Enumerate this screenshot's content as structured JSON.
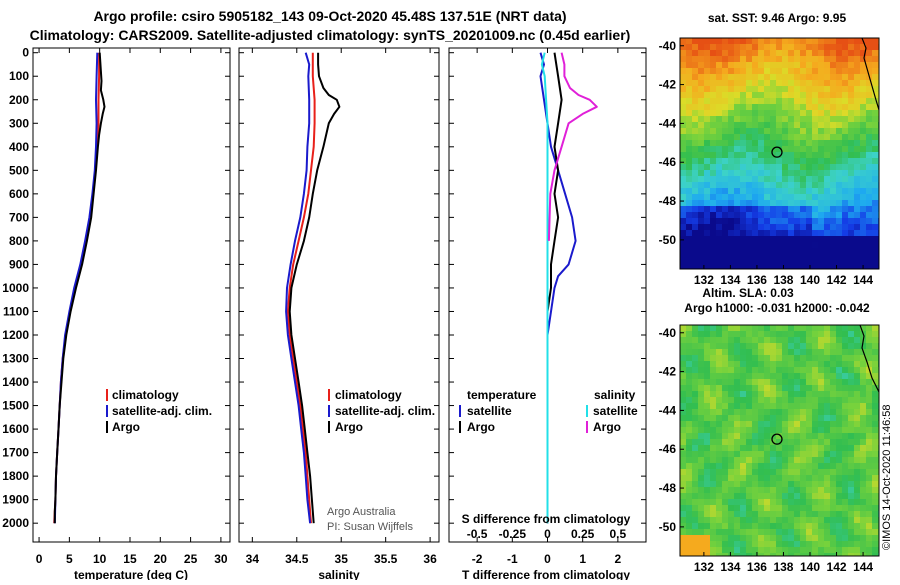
{
  "header": {
    "line1": "Argo profile: csiro 5905182_143 09-Oct-2020 45.48S 137.51E (NRT data)",
    "line2": "Climatology: CARS2009. Satellite-adjusted climatology: synTS_20201009.nc (0.45d earlier)"
  },
  "colors": {
    "argo": "#000000",
    "climatology": "#e8201a",
    "satellite": "#1a1acc",
    "s_satellite": "#22e0e8",
    "s_argo": "#e020d8"
  },
  "chart_data": [
    {
      "type": "line",
      "id": "temperature",
      "xlabel": "temperature (deg C)",
      "ylabel": "",
      "xlim": [
        -1,
        31.5
      ],
      "ylim": [
        2080,
        -20
      ],
      "xticks": [
        0,
        5,
        10,
        15,
        20,
        25,
        30
      ],
      "yticks": [
        0,
        100,
        200,
        300,
        400,
        500,
        600,
        700,
        800,
        900,
        1000,
        1100,
        1200,
        1300,
        1400,
        1500,
        1600,
        1700,
        1800,
        1900,
        2000
      ],
      "legend": {
        "position": "center-right",
        "entries": [
          "climatology",
          "satellite-adj. clim.",
          "Argo"
        ]
      },
      "series": [
        {
          "name": "climatology",
          "color_key": "climatology",
          "points": [
            [
              9.9,
              0
            ],
            [
              9.9,
              100
            ],
            [
              9.8,
              200
            ],
            [
              9.8,
              300
            ],
            [
              9.6,
              400
            ],
            [
              9.3,
              500
            ],
            [
              8.9,
              600
            ],
            [
              8.5,
              700
            ],
            [
              7.8,
              800
            ],
            [
              7.0,
              900
            ],
            [
              6.0,
              1000
            ],
            [
              5.1,
              1100
            ],
            [
              4.4,
              1200
            ],
            [
              3.9,
              1300
            ],
            [
              3.6,
              1400
            ],
            [
              3.4,
              1500
            ],
            [
              3.2,
              1600
            ],
            [
              3.0,
              1700
            ],
            [
              2.8,
              1800
            ],
            [
              2.7,
              1900
            ],
            [
              2.5,
              2000
            ]
          ]
        },
        {
          "name": "satellite-adj. clim.",
          "color_key": "satellite",
          "points": [
            [
              9.6,
              0
            ],
            [
              9.5,
              100
            ],
            [
              9.4,
              200
            ],
            [
              9.5,
              300
            ],
            [
              9.4,
              400
            ],
            [
              9.2,
              500
            ],
            [
              8.8,
              600
            ],
            [
              8.3,
              700
            ],
            [
              7.6,
              800
            ],
            [
              6.8,
              900
            ],
            [
              5.8,
              1000
            ],
            [
              5.0,
              1100
            ],
            [
              4.3,
              1200
            ],
            [
              3.9,
              1300
            ],
            [
              3.6,
              1400
            ],
            [
              3.4,
              1500
            ],
            [
              3.2,
              1600
            ],
            [
              3.0,
              1700
            ],
            [
              2.8,
              1800
            ],
            [
              2.7,
              1900
            ],
            [
              2.6,
              2000
            ]
          ]
        },
        {
          "name": "Argo",
          "color_key": "argo",
          "points": [
            [
              10.0,
              0
            ],
            [
              10.1,
              40
            ],
            [
              10.2,
              80
            ],
            [
              10.3,
              120
            ],
            [
              10.2,
              160
            ],
            [
              10.6,
              200
            ],
            [
              10.8,
              230
            ],
            [
              10.5,
              260
            ],
            [
              10.2,
              300
            ],
            [
              9.9,
              350
            ],
            [
              9.7,
              400
            ],
            [
              9.4,
              500
            ],
            [
              9.0,
              600
            ],
            [
              8.6,
              700
            ],
            [
              7.9,
              800
            ],
            [
              7.1,
              900
            ],
            [
              6.1,
              1000
            ],
            [
              5.2,
              1100
            ],
            [
              4.5,
              1200
            ],
            [
              4.0,
              1300
            ],
            [
              3.7,
              1400
            ],
            [
              3.4,
              1500
            ],
            [
              3.2,
              1600
            ],
            [
              3.0,
              1700
            ],
            [
              2.8,
              1800
            ],
            [
              2.7,
              1900
            ],
            [
              2.6,
              1950
            ],
            [
              2.6,
              2000
            ]
          ]
        }
      ]
    },
    {
      "type": "line",
      "id": "salinity",
      "xlabel": "salinity",
      "ylabel": "",
      "xlim": [
        33.85,
        36.1
      ],
      "ylim": [
        2080,
        -20
      ],
      "xticks": [
        34,
        34.5,
        35,
        35.5,
        36
      ],
      "xtick_labels": [
        "34",
        "34.5",
        "35",
        "35.5",
        "36"
      ],
      "legend": {
        "position": "center-right",
        "entries": [
          "climatology",
          "satellite-adj. clim.",
          "Argo"
        ]
      },
      "credit": [
        "Argo Australia",
        "PI: Susan Wijffels"
      ],
      "series": [
        {
          "name": "climatology",
          "color_key": "climatology",
          "points": [
            [
              34.68,
              0
            ],
            [
              34.68,
              100
            ],
            [
              34.7,
              200
            ],
            [
              34.7,
              300
            ],
            [
              34.69,
              400
            ],
            [
              34.66,
              500
            ],
            [
              34.63,
              600
            ],
            [
              34.58,
              700
            ],
            [
              34.52,
              800
            ],
            [
              34.46,
              900
            ],
            [
              34.42,
              1000
            ],
            [
              34.4,
              1100
            ],
            [
              34.42,
              1200
            ],
            [
              34.46,
              1300
            ],
            [
              34.5,
              1400
            ],
            [
              34.54,
              1500
            ],
            [
              34.57,
              1600
            ],
            [
              34.6,
              1700
            ],
            [
              34.62,
              1800
            ],
            [
              34.64,
              1900
            ],
            [
              34.66,
              2000
            ]
          ]
        },
        {
          "name": "satellite-adj. clim.",
          "color_key": "satellite",
          "points": [
            [
              34.6,
              0
            ],
            [
              34.64,
              50
            ],
            [
              34.63,
              100
            ],
            [
              34.64,
              200
            ],
            [
              34.64,
              300
            ],
            [
              34.62,
              400
            ],
            [
              34.61,
              500
            ],
            [
              34.58,
              600
            ],
            [
              34.54,
              700
            ],
            [
              34.48,
              800
            ],
            [
              34.43,
              900
            ],
            [
              34.39,
              1000
            ],
            [
              34.38,
              1100
            ],
            [
              34.4,
              1200
            ],
            [
              34.44,
              1300
            ],
            [
              34.48,
              1400
            ],
            [
              34.52,
              1500
            ],
            [
              34.55,
              1600
            ],
            [
              34.58,
              1700
            ],
            [
              34.6,
              1800
            ],
            [
              34.62,
              1900
            ],
            [
              34.65,
              2000
            ]
          ]
        },
        {
          "name": "Argo",
          "color_key": "argo",
          "points": [
            [
              34.74,
              0
            ],
            [
              34.74,
              50
            ],
            [
              34.75,
              100
            ],
            [
              34.8,
              150
            ],
            [
              34.86,
              180
            ],
            [
              34.95,
              200
            ],
            [
              34.98,
              230
            ],
            [
              34.92,
              260
            ],
            [
              34.86,
              300
            ],
            [
              34.8,
              400
            ],
            [
              34.73,
              500
            ],
            [
              34.68,
              600
            ],
            [
              34.64,
              700
            ],
            [
              34.58,
              800
            ],
            [
              34.5,
              900
            ],
            [
              34.44,
              1000
            ],
            [
              34.42,
              1100
            ],
            [
              34.44,
              1200
            ],
            [
              34.48,
              1300
            ],
            [
              34.52,
              1400
            ],
            [
              34.56,
              1500
            ],
            [
              34.59,
              1600
            ],
            [
              34.62,
              1700
            ],
            [
              34.65,
              1800
            ],
            [
              34.67,
              1900
            ],
            [
              34.69,
              2000
            ]
          ]
        }
      ]
    },
    {
      "type": "line",
      "id": "difference",
      "xlabel": "T difference from climatology",
      "ylabel": "",
      "xlim": [
        -2.8,
        2.8
      ],
      "ylim": [
        2080,
        -20
      ],
      "xticks": [
        -2,
        -1,
        0,
        1,
        2
      ],
      "xtick_labels": [
        "-2",
        "-1",
        "0",
        "1",
        "2"
      ],
      "top_axis": {
        "label": "S difference from climatology",
        "xlim": [
          -0.7,
          0.7
        ],
        "xticks": [
          -0.5,
          -0.25,
          0,
          0.25,
          0.5
        ],
        "xtick_labels": [
          "-0.5",
          "-0.25",
          "0",
          "0.25",
          "0.5"
        ]
      },
      "legend": {
        "position": "center",
        "temperature_title": "temperature",
        "salinity_title": "salinity",
        "entries": [
          "satellite",
          "Argo",
          "satellite",
          "Argo"
        ]
      },
      "series": [
        {
          "name": "T satellite",
          "color_key": "satellite",
          "axis": "T",
          "points": [
            [
              -0.2,
              0
            ],
            [
              -0.1,
              50
            ],
            [
              -0.2,
              100
            ],
            [
              -0.1,
              200
            ],
            [
              0.0,
              300
            ],
            [
              0.1,
              400
            ],
            [
              0.3,
              500
            ],
            [
              0.5,
              600
            ],
            [
              0.7,
              700
            ],
            [
              0.8,
              800
            ],
            [
              0.6,
              900
            ],
            [
              0.3,
              950
            ],
            [
              0.2,
              1000
            ],
            [
              0.1,
              1100
            ],
            [
              0.0,
              1200
            ],
            [
              0.0,
              1400
            ],
            [
              0.0,
              1600
            ],
            [
              0.0,
              1800
            ],
            [
              0.0,
              2000
            ]
          ]
        },
        {
          "name": "T Argo",
          "color_key": "argo",
          "axis": "T",
          "points": [
            [
              0.2,
              0
            ],
            [
              0.3,
              100
            ],
            [
              0.4,
              200
            ],
            [
              0.3,
              300
            ],
            [
              0.2,
              400
            ],
            [
              0.3,
              500
            ],
            [
              0.2,
              600
            ],
            [
              0.3,
              700
            ],
            [
              0.2,
              800
            ],
            [
              0.1,
              900
            ],
            [
              0.1,
              1000
            ],
            [
              0.0,
              1100
            ],
            [
              0.0,
              1300
            ],
            [
              0.0,
              1500
            ],
            [
              0.0,
              1700
            ],
            [
              0.0,
              1900
            ],
            [
              0.0,
              2000
            ]
          ]
        },
        {
          "name": "S satellite",
          "color_key": "s_satellite",
          "axis": "S",
          "points": [
            [
              -0.02,
              0
            ],
            [
              -0.04,
              50
            ],
            [
              -0.02,
              100
            ],
            [
              -0.01,
              200
            ],
            [
              0.0,
              300
            ],
            [
              0.0,
              500
            ],
            [
              0.0,
              800
            ],
            [
              0.0,
              1000
            ],
            [
              0.0,
              1300
            ],
            [
              0.0,
              1600
            ],
            [
              0.0,
              2000
            ]
          ]
        },
        {
          "name": "S Argo",
          "color_key": "s_argo",
          "axis": "S",
          "points": [
            [
              0.1,
              0
            ],
            [
              0.12,
              50
            ],
            [
              0.12,
              100
            ],
            [
              0.16,
              150
            ],
            [
              0.22,
              180
            ],
            [
              0.3,
              200
            ],
            [
              0.35,
              230
            ],
            [
              0.25,
              260
            ],
            [
              0.15,
              300
            ],
            [
              0.1,
              400
            ],
            [
              0.05,
              500
            ],
            [
              0.02,
              600
            ],
            [
              0.01,
              800
            ]
          ]
        }
      ]
    },
    {
      "type": "heatmap",
      "id": "sst_map",
      "title": "sat. SST: 9.46 Argo: 9.95",
      "xticks": [
        132,
        134,
        136,
        138,
        140,
        142,
        144
      ],
      "yticks": [
        -40,
        -42,
        -44,
        -46,
        -48,
        -50
      ],
      "xlim": [
        130.2,
        145.2
      ],
      "ylim": [
        -51.5,
        -39.6
      ],
      "marker": {
        "lon": 137.51,
        "lat": -45.48
      },
      "footer": "Altim. SLA: 0.03"
    },
    {
      "type": "heatmap",
      "id": "sla_map",
      "title": "Argo h1000: -0.031 h2000: -0.042",
      "xticks": [
        132,
        134,
        136,
        138,
        140,
        142,
        144
      ],
      "yticks": [
        -40,
        -42,
        -44,
        -46,
        -48,
        -50
      ],
      "xlim": [
        130.2,
        145.2
      ],
      "ylim": [
        -51.5,
        -39.6
      ],
      "marker": {
        "lon": 137.51,
        "lat": -45.48
      }
    }
  ],
  "stamp": "©IMOS 14-Oct-2020 11:46:58"
}
